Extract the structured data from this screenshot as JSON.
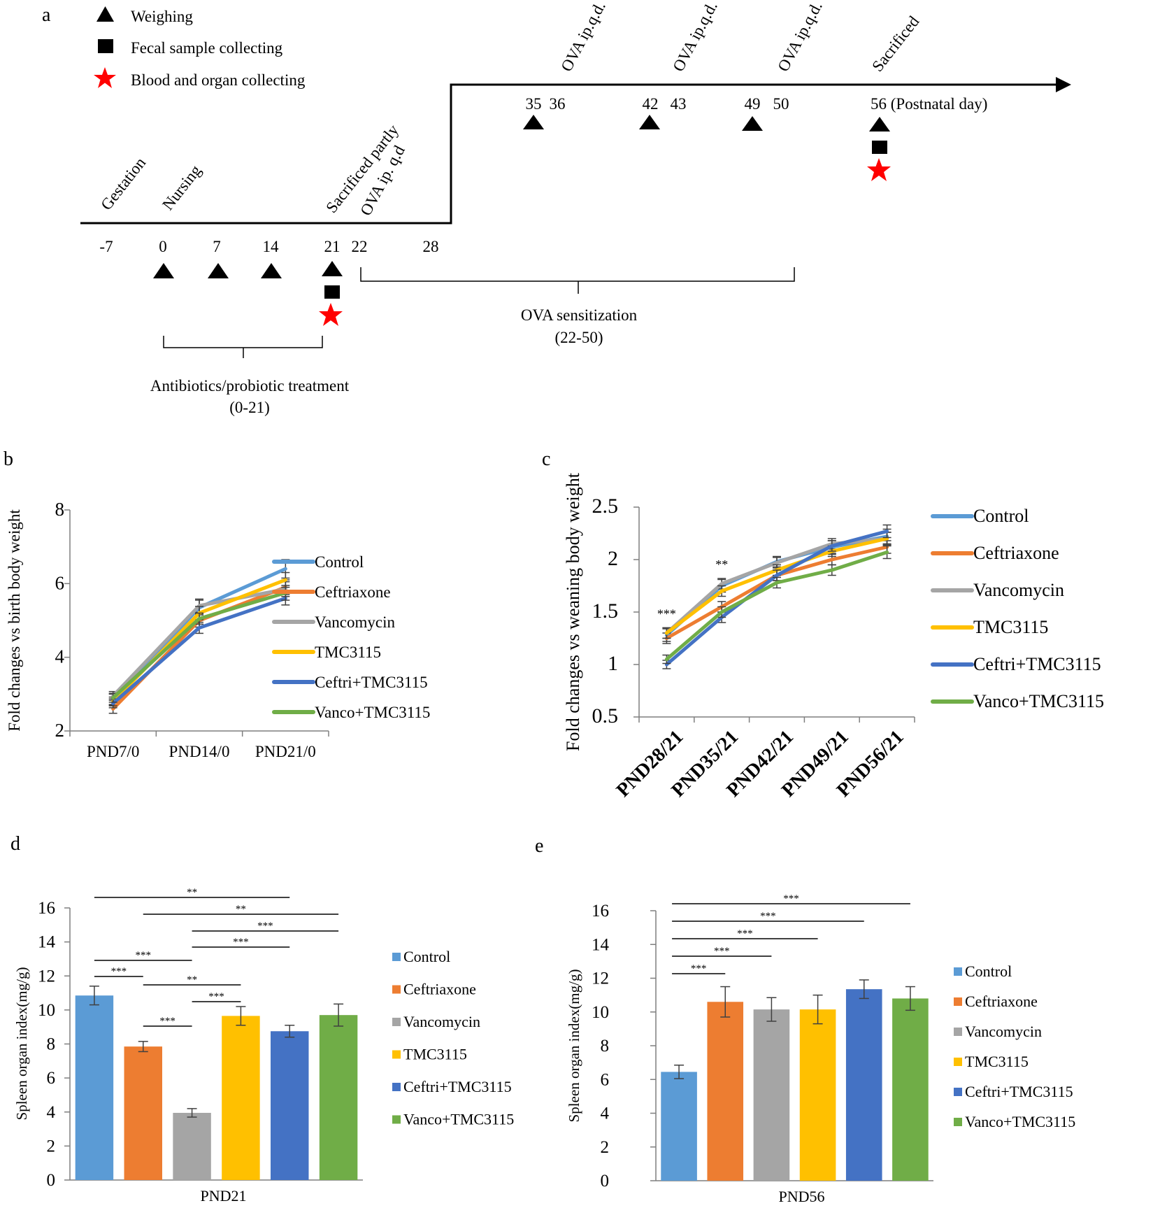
{
  "figure": {
    "colors": {
      "control": "#5B9BD5",
      "ceftriaxone": "#ED7D31",
      "vancomycin": "#A5A5A5",
      "tmc": "#FFC000",
      "ceftri_tmc": "#4472C4",
      "vanco_tmc": "#70AD47",
      "star": "#FF0000",
      "axis": "#7F7F7F",
      "ink": "#000000"
    },
    "panel_labels": {
      "a": "a",
      "b": "b",
      "c": "c",
      "d": "d",
      "e": "e"
    }
  },
  "timeline": {
    "legend": [
      {
        "icon": "triangle-icon",
        "label": "Weighing"
      },
      {
        "icon": "square-icon",
        "label": "Fecal sample collecting"
      },
      {
        "icon": "star-icon",
        "label": "Blood and organ collecting"
      }
    ],
    "lower_days": [
      "-7",
      "0",
      "7",
      "14",
      "21",
      "22",
      "28"
    ],
    "lower_events": [
      "Gestation",
      "Nursing",
      "Sacrificed partly",
      "OVA ip. q.d"
    ],
    "upper_days": [
      "35",
      "36",
      "42",
      "43",
      "49",
      "50",
      "56 (Postnatal day)"
    ],
    "upper_events": [
      "OVA ip.q.d.",
      "OVA ip.q.d.",
      "OVA ip.q.d.",
      "Sacrificed"
    ],
    "brace_treatment": {
      "line1": "Antibiotics/probiotic treatment",
      "line2": "(0-21)"
    },
    "brace_sensitization": {
      "line1": "OVA sensitization",
      "line2": "(22-50)"
    }
  },
  "chart_data": [
    {
      "panel": "b",
      "type": "line",
      "ylabel": "Fold changes vs birth body weight",
      "xlabel": "",
      "categories": [
        "PND7/0",
        "PND14/0",
        "PND21/0"
      ],
      "ylim": [
        2,
        8
      ],
      "yticks": [
        2,
        4,
        6,
        8
      ],
      "series": [
        {
          "name": "Control",
          "values": [
            2.85,
            5.35,
            6.4
          ],
          "errors": [
            0.15,
            0.2,
            0.25
          ]
        },
        {
          "name": "Ceftriaxone",
          "values": [
            2.6,
            5.0,
            5.9
          ],
          "errors": [
            0.12,
            0.18,
            0.2
          ]
        },
        {
          "name": "Vancomycin",
          "values": [
            2.95,
            5.4,
            5.85
          ],
          "errors": [
            0.12,
            0.18,
            0.2
          ]
        },
        {
          "name": "TMC3115",
          "values": [
            2.8,
            5.2,
            6.1
          ],
          "errors": [
            0.12,
            0.18,
            0.2
          ]
        },
        {
          "name": "Ceftri+TMC3115",
          "values": [
            2.75,
            4.8,
            5.6
          ],
          "errors": [
            0.12,
            0.15,
            0.18
          ]
        },
        {
          "name": "Vanco+TMC3115",
          "values": [
            2.9,
            5.05,
            5.75
          ],
          "errors": [
            0.12,
            0.15,
            0.2
          ]
        }
      ],
      "legend_position": "right"
    },
    {
      "panel": "c",
      "type": "line",
      "ylabel": "Fold changes vs weaning body weight",
      "xlabel": "",
      "categories": [
        "PND28/21",
        "PND35/21",
        "PND42/21",
        "PND49/21",
        "PND56/21"
      ],
      "ylim": [
        0.5,
        2.5
      ],
      "yticks": [
        0.5,
        1,
        1.5,
        2,
        2.5
      ],
      "ytick_labels": [
        "0.5",
        "1",
        "1.5",
        "2",
        "2.5"
      ],
      "series": [
        {
          "name": "Control",
          "values": [
            1.28,
            1.75,
            1.98,
            2.12,
            2.22
          ],
          "errors": [
            0.06,
            0.06,
            0.05,
            0.06,
            0.07
          ]
        },
        {
          "name": "Ceftriaxone",
          "values": [
            1.25,
            1.55,
            1.85,
            2.0,
            2.12
          ],
          "errors": [
            0.05,
            0.05,
            0.05,
            0.05,
            0.06
          ]
        },
        {
          "name": "Vancomycin",
          "values": [
            1.3,
            1.77,
            1.97,
            2.15,
            2.2
          ],
          "errors": [
            0.05,
            0.05,
            0.05,
            0.05,
            0.06
          ]
        },
        {
          "name": "TMC3115",
          "values": [
            1.3,
            1.7,
            1.9,
            2.08,
            2.2
          ],
          "errors": [
            0.05,
            0.05,
            0.05,
            0.05,
            0.06
          ]
        },
        {
          "name": "Ceftri+TMC3115",
          "values": [
            1.0,
            1.45,
            1.85,
            2.13,
            2.27
          ],
          "errors": [
            0.04,
            0.05,
            0.05,
            0.05,
            0.06
          ]
        },
        {
          "name": "Vanco+TMC3115",
          "values": [
            1.05,
            1.5,
            1.78,
            1.9,
            2.07
          ],
          "errors": [
            0.04,
            0.05,
            0.05,
            0.05,
            0.06
          ]
        }
      ],
      "annotations": [
        {
          "category": "PND28/21",
          "text": "***"
        },
        {
          "category": "PND35/21",
          "text": "**"
        }
      ],
      "legend_position": "right"
    },
    {
      "panel": "d",
      "type": "bar",
      "ylabel": "Spleen organ index(mg/g)",
      "xlabel": "PND21",
      "ylim": [
        0,
        16
      ],
      "yticks": [
        0,
        2,
        4,
        6,
        8,
        10,
        12,
        14,
        16
      ],
      "series": [
        {
          "name": "Control",
          "value": 10.85,
          "error": 0.55
        },
        {
          "name": "Ceftriaxone",
          "value": 7.85,
          "error": 0.3
        },
        {
          "name": "Vancomycin",
          "value": 3.95,
          "error": 0.25
        },
        {
          "name": "TMC3115",
          "value": 9.65,
          "error": 0.55
        },
        {
          "name": "Ceftri+TMC3115",
          "value": 8.75,
          "error": 0.35
        },
        {
          "name": "Vanco+TMC3115",
          "value": 9.7,
          "error": 0.65
        }
      ],
      "significance": [
        {
          "from": 0,
          "to": 4,
          "text": "**"
        },
        {
          "from": 1,
          "to": 5,
          "text": "**"
        },
        {
          "from": 2,
          "to": 5,
          "text": "***"
        },
        {
          "from": 2,
          "to": 4,
          "text": "***"
        },
        {
          "from": 0,
          "to": 2,
          "text": "***"
        },
        {
          "from": 0,
          "to": 1,
          "text": "***"
        },
        {
          "from": 1,
          "to": 3,
          "text": "**"
        },
        {
          "from": 2,
          "to": 3,
          "text": "***"
        },
        {
          "from": 1,
          "to": 2,
          "text": "***"
        }
      ],
      "legend_position": "right"
    },
    {
      "panel": "e",
      "type": "bar",
      "ylabel": "Spleen organ index(mg/g)",
      "xlabel": "PND56",
      "ylim": [
        0,
        16
      ],
      "yticks": [
        0,
        2,
        4,
        6,
        8,
        10,
        12,
        14,
        16
      ],
      "series": [
        {
          "name": "Control",
          "value": 6.45,
          "error": 0.4
        },
        {
          "name": "Ceftriaxone",
          "value": 10.6,
          "error": 0.9
        },
        {
          "name": "Vancomycin",
          "value": 10.15,
          "error": 0.7
        },
        {
          "name": "TMC3115",
          "value": 10.15,
          "error": 0.85
        },
        {
          "name": "Ceftri+TMC3115",
          "value": 11.35,
          "error": 0.55
        },
        {
          "name": "Vanco+TMC3115",
          "value": 10.8,
          "error": 0.7
        }
      ],
      "significance": [
        {
          "from": 0,
          "to": 5,
          "text": "***"
        },
        {
          "from": 0,
          "to": 4,
          "text": "***"
        },
        {
          "from": 0,
          "to": 3,
          "text": "***"
        },
        {
          "from": 0,
          "to": 2,
          "text": "***"
        },
        {
          "from": 0,
          "to": 1,
          "text": "***"
        }
      ],
      "legend_position": "right"
    }
  ]
}
